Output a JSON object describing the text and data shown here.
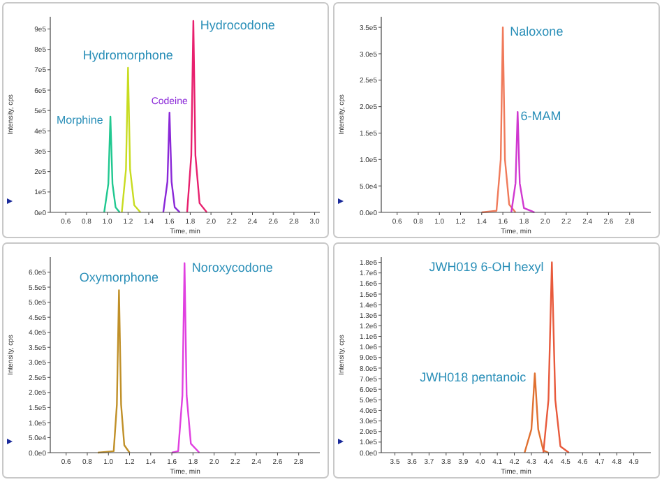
{
  "chart_data": [
    {
      "type": "line",
      "xlabel": "Time, min",
      "ylabel": "Intensity, cps",
      "xlim": [
        0.45,
        3.05
      ],
      "ylim": [
        0,
        960000
      ],
      "grid": false,
      "line_style": "solid",
      "xticks": [
        {
          "value": 0.6,
          "label": "0.6"
        },
        {
          "value": 0.8,
          "label": "0.8"
        },
        {
          "value": 1,
          "label": "1.0"
        },
        {
          "value": 1.2,
          "label": "1.2"
        },
        {
          "value": 1.4,
          "label": "1.4"
        },
        {
          "value": 1.6,
          "label": "1.6"
        },
        {
          "value": 1.8,
          "label": "1.8"
        },
        {
          "value": 2,
          "label": "2.0"
        },
        {
          "value": 2.2,
          "label": "2.2"
        },
        {
          "value": 2.4,
          "label": "2.4"
        },
        {
          "value": 2.6,
          "label": "2.6"
        },
        {
          "value": 2.8,
          "label": "2.8"
        },
        {
          "value": 3,
          "label": "3.0"
        }
      ],
      "yticks": [
        {
          "value": 0,
          "label": "0e0"
        },
        {
          "value": 100000,
          "label": "1e5"
        },
        {
          "value": 200000,
          "label": "2e5"
        },
        {
          "value": 300000,
          "label": "3e5"
        },
        {
          "value": 400000,
          "label": "4e5"
        },
        {
          "value": 500000,
          "label": "5e5"
        },
        {
          "value": 600000,
          "label": "6e5"
        },
        {
          "value": 700000,
          "label": "7e5"
        },
        {
          "value": 800000,
          "label": "8e5"
        },
        {
          "value": 900000,
          "label": "9e5"
        }
      ],
      "series": [
        {
          "name": "Morphine",
          "color": "#20c890",
          "x": [
            0.97,
            1.01,
            1.03,
            1.05,
            1.08,
            1.12
          ],
          "values": [
            0,
            140000,
            470000,
            140000,
            25000,
            0
          ]
        },
        {
          "name": "Hydromorphone",
          "color": "#c8dc20",
          "x": [
            1.14,
            1.18,
            1.2,
            1.22,
            1.26,
            1.32
          ],
          "values": [
            0,
            210000,
            710000,
            210000,
            35000,
            0
          ]
        },
        {
          "name": "Codeine",
          "color": "#8a28d8",
          "x": [
            1.54,
            1.58,
            1.6,
            1.62,
            1.65,
            1.7
          ],
          "values": [
            0,
            150000,
            490000,
            150000,
            25000,
            0
          ]
        },
        {
          "name": "Hydrocodone",
          "color": "#e8206e",
          "x": [
            1.77,
            1.81,
            1.83,
            1.85,
            1.89,
            1.96
          ],
          "values": [
            0,
            280000,
            940000,
            280000,
            45000,
            0
          ]
        }
      ]
    },
    {
      "type": "line",
      "xlabel": "Time, min",
      "ylabel": "Intensity, cps",
      "xlim": [
        0.45,
        3.0
      ],
      "ylim": [
        0,
        370000
      ],
      "grid": false,
      "line_style": "solid",
      "xticks": [
        {
          "value": 0.6,
          "label": "0.6"
        },
        {
          "value": 0.8,
          "label": "0.8"
        },
        {
          "value": 1,
          "label": "1.0"
        },
        {
          "value": 1.2,
          "label": "1.2"
        },
        {
          "value": 1.4,
          "label": "1.4"
        },
        {
          "value": 1.6,
          "label": "1.6"
        },
        {
          "value": 1.8,
          "label": "1.8"
        },
        {
          "value": 2,
          "label": "2.0"
        },
        {
          "value": 2.2,
          "label": "2.2"
        },
        {
          "value": 2.4,
          "label": "2.4"
        },
        {
          "value": 2.6,
          "label": "2.6"
        },
        {
          "value": 2.8,
          "label": "2.8"
        }
      ],
      "yticks": [
        {
          "value": 0,
          "label": "0.0e0"
        },
        {
          "value": 50000,
          "label": "5.0e4"
        },
        {
          "value": 100000,
          "label": "1.0e5"
        },
        {
          "value": 150000,
          "label": "1.5e5"
        },
        {
          "value": 200000,
          "label": "2.0e5"
        },
        {
          "value": 250000,
          "label": "2.5e5"
        },
        {
          "value": 300000,
          "label": "3.0e5"
        },
        {
          "value": 350000,
          "label": "3.5e5"
        }
      ],
      "series": [
        {
          "name": "Naloxone",
          "color": "#f07a5a",
          "x": [
            1.4,
            1.54,
            1.58,
            1.6,
            1.62,
            1.66,
            1.72
          ],
          "values": [
            0,
            3000,
            100000,
            350000,
            100000,
            15000,
            0
          ]
        },
        {
          "name": "6-MAM",
          "color": "#d038d0",
          "x": [
            1.68,
            1.72,
            1.74,
            1.76,
            1.8,
            1.9
          ],
          "values": [
            0,
            55000,
            190000,
            55000,
            8000,
            0
          ]
        }
      ]
    },
    {
      "type": "line",
      "xlabel": "Time, min",
      "ylabel": "Intensity, cps",
      "xlim": [
        0.45,
        3.0
      ],
      "ylim": [
        0,
        650000
      ],
      "grid": false,
      "line_style": "solid",
      "xticks": [
        {
          "value": 0.6,
          "label": "0.6"
        },
        {
          "value": 0.8,
          "label": "0.8"
        },
        {
          "value": 1,
          "label": "1.0"
        },
        {
          "value": 1.2,
          "label": "1.2"
        },
        {
          "value": 1.4,
          "label": "1.4"
        },
        {
          "value": 1.6,
          "label": "1.6"
        },
        {
          "value": 1.8,
          "label": "1.8"
        },
        {
          "value": 2,
          "label": "2.0"
        },
        {
          "value": 2.2,
          "label": "2.2"
        },
        {
          "value": 2.4,
          "label": "2.4"
        },
        {
          "value": 2.6,
          "label": "2.6"
        },
        {
          "value": 2.8,
          "label": "2.8"
        }
      ],
      "yticks": [
        {
          "value": 0,
          "label": "0.0e0"
        },
        {
          "value": 50000,
          "label": "5.0e4"
        },
        {
          "value": 100000,
          "label": "1.0e5"
        },
        {
          "value": 150000,
          "label": "1.5e5"
        },
        {
          "value": 200000,
          "label": "2.0e5"
        },
        {
          "value": 250000,
          "label": "2.5e5"
        },
        {
          "value": 300000,
          "label": "3.0e5"
        },
        {
          "value": 350000,
          "label": "3.5e5"
        },
        {
          "value": 400000,
          "label": "4.0e5"
        },
        {
          "value": 450000,
          "label": "4.5e5"
        },
        {
          "value": 500000,
          "label": "5.0e5"
        },
        {
          "value": 550000,
          "label": "5.5e5"
        },
        {
          "value": 600000,
          "label": "6.0e5"
        }
      ],
      "series": [
        {
          "name": "Oxymorphone",
          "color": "#c09028",
          "x": [
            0.9,
            1.05,
            1.08,
            1.1,
            1.12,
            1.15,
            1.2
          ],
          "values": [
            0,
            5000,
            160000,
            540000,
            160000,
            25000,
            0
          ]
        },
        {
          "name": "Noroxycodone",
          "color": "#e040e0",
          "x": [
            1.6,
            1.66,
            1.7,
            1.72,
            1.74,
            1.78,
            1.86
          ],
          "values": [
            0,
            5000,
            190000,
            630000,
            190000,
            30000,
            0
          ]
        }
      ]
    },
    {
      "type": "line",
      "xlabel": "Time, min",
      "ylabel": "Intensity, cps",
      "xlim": [
        3.42,
        5.0
      ],
      "ylim": [
        0,
        1850000
      ],
      "grid": false,
      "line_style": "solid",
      "xticks": [
        {
          "value": 3.5,
          "label": "3.5"
        },
        {
          "value": 3.6,
          "label": "3.6"
        },
        {
          "value": 3.7,
          "label": "3.7"
        },
        {
          "value": 3.8,
          "label": "3.8"
        },
        {
          "value": 3.9,
          "label": "3.9"
        },
        {
          "value": 4,
          "label": "4.0"
        },
        {
          "value": 4.1,
          "label": "4.1"
        },
        {
          "value": 4.2,
          "label": "4.2"
        },
        {
          "value": 4.3,
          "label": "4.3"
        },
        {
          "value": 4.4,
          "label": "4.4"
        },
        {
          "value": 4.5,
          "label": "4.5"
        },
        {
          "value": 4.6,
          "label": "4.6"
        },
        {
          "value": 4.7,
          "label": "4.7"
        },
        {
          "value": 4.8,
          "label": "4.8"
        },
        {
          "value": 4.9,
          "label": "4.9"
        }
      ],
      "yticks": [
        {
          "value": 0,
          "label": "0.0e0"
        },
        {
          "value": 100000,
          "label": "1.0e5"
        },
        {
          "value": 200000,
          "label": "2.0e5"
        },
        {
          "value": 300000,
          "label": "3.0e5"
        },
        {
          "value": 400000,
          "label": "4.0e5"
        },
        {
          "value": 500000,
          "label": "5.0e5"
        },
        {
          "value": 600000,
          "label": "6.0e5"
        },
        {
          "value": 700000,
          "label": "7.0e5"
        },
        {
          "value": 800000,
          "label": "8.0e5"
        },
        {
          "value": 900000,
          "label": "9.0e5"
        },
        {
          "value": 1000000,
          "label": "1.0e6"
        },
        {
          "value": 1100000,
          "label": "1.1e6"
        },
        {
          "value": 1200000,
          "label": "1.2e6"
        },
        {
          "value": 1300000,
          "label": "1.3e6"
        },
        {
          "value": 1400000,
          "label": "1.4e6"
        },
        {
          "value": 1500000,
          "label": "1.5e6"
        },
        {
          "value": 1600000,
          "label": "1.6e6"
        },
        {
          "value": 1700000,
          "label": "1.7e6"
        },
        {
          "value": 1800000,
          "label": "1.8e6"
        }
      ],
      "series": [
        {
          "name": "JWH018 pentanoic",
          "color": "#e07030",
          "x": [
            4.26,
            4.3,
            4.32,
            4.34,
            4.37,
            4.4
          ],
          "values": [
            0,
            220000,
            750000,
            220000,
            20000,
            0
          ]
        },
        {
          "name": "JWH019 6-OH hexyl",
          "color": "#e85a3c",
          "x": [
            4.37,
            4.4,
            4.42,
            4.44,
            4.47,
            4.52
          ],
          "values": [
            0,
            500000,
            1800000,
            500000,
            60000,
            0
          ]
        }
      ]
    }
  ]
}
